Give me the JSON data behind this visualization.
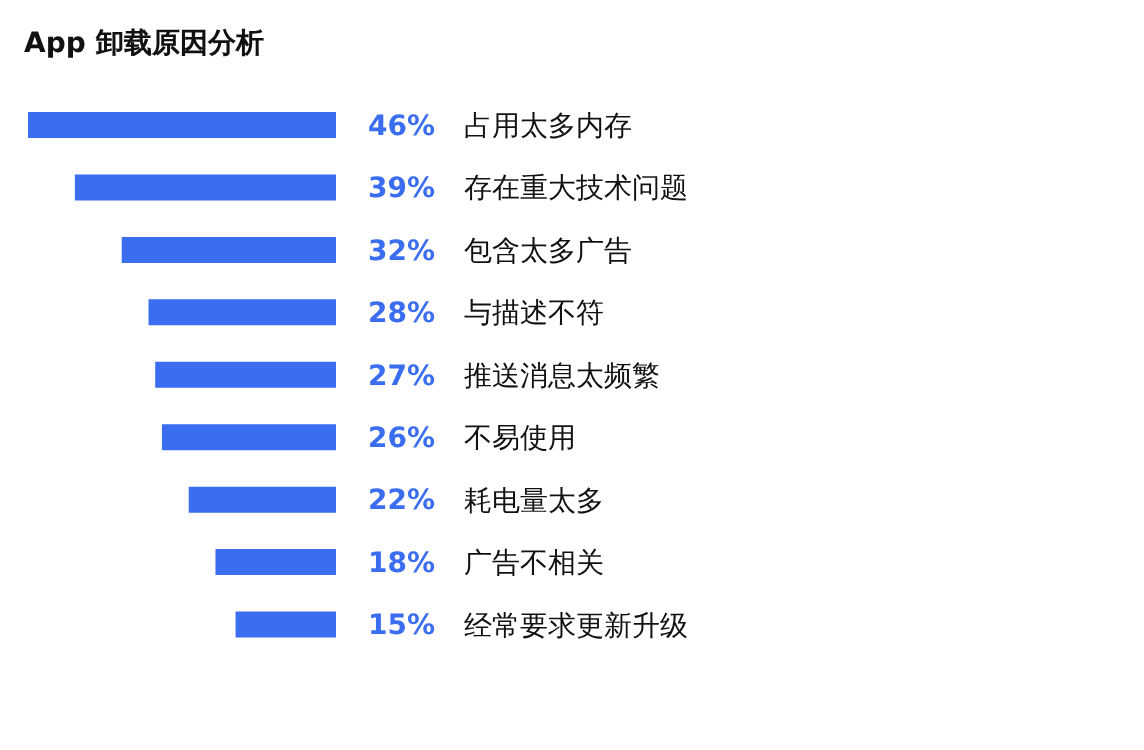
{
  "chart_data": {
    "type": "bar",
    "orientation": "horizontal",
    "title": "App 卸载原因分析",
    "categories": [
      "占用太多内存",
      "存在重大技术问题",
      "包含太多广告",
      "与描述不符",
      "推送消息太频繁",
      "不易使用",
      "耗电量太多",
      "广告不相关",
      "经常要求更新升级"
    ],
    "values": [
      46,
      39,
      32,
      28,
      27,
      26,
      22,
      18,
      15
    ],
    "value_labels": [
      "46%",
      "39%",
      "32%",
      "28%",
      "27%",
      "26%",
      "22%",
      "18%",
      "15%"
    ],
    "color": "#3a6df0",
    "grid": false,
    "legend": false
  }
}
